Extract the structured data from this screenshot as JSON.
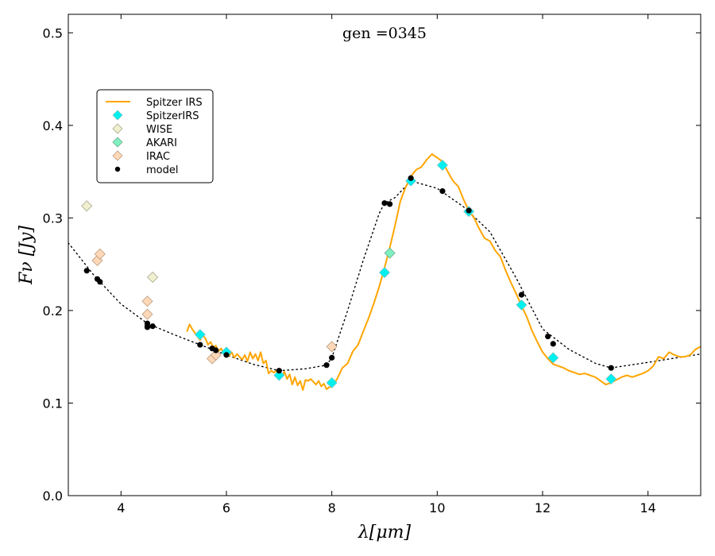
{
  "chart_data": {
    "type": "line",
    "title": "gen =0345",
    "xlabel": "λ[μm]",
    "ylabel": "Fν [Jy]",
    "xlim": [
      3,
      15
    ],
    "ylim": [
      0.0,
      0.52
    ],
    "xticks": [
      4,
      6,
      8,
      10,
      12,
      14
    ],
    "yticks": [
      0.0,
      0.1,
      0.2,
      0.3,
      0.4,
      0.5
    ],
    "legend_position": "upper-left",
    "colors": {
      "spitzer_irs_line": "#ffa500",
      "spitzer_irs_marker": "#00f0f0",
      "wise_marker": "#f0f0d0",
      "akari_marker": "#80f0c0",
      "irac_marker": "#ffd8b8",
      "model": "#000000"
    },
    "series": [
      {
        "name": "Spitzer IRS",
        "kind": "line",
        "x": [
          5.25,
          5.3,
          5.35,
          5.4,
          5.45,
          5.5,
          5.55,
          5.6,
          5.65,
          5.7,
          5.75,
          5.8,
          5.85,
          5.9,
          5.95,
          6.0,
          6.05,
          6.1,
          6.15,
          6.2,
          6.25,
          6.3,
          6.35,
          6.4,
          6.45,
          6.5,
          6.55,
          6.6,
          6.65,
          6.7,
          6.75,
          6.8,
          6.85,
          6.9,
          6.95,
          7.0,
          7.05,
          7.1,
          7.15,
          7.2,
          7.25,
          7.3,
          7.35,
          7.4,
          7.45,
          7.5,
          7.55,
          7.6,
          7.65,
          7.7,
          7.75,
          7.8,
          7.85,
          7.9,
          7.95,
          8.0,
          8.1,
          8.2,
          8.3,
          8.4,
          8.5,
          8.6,
          8.7,
          8.8,
          8.9,
          9.0,
          9.1,
          9.2,
          9.3,
          9.4,
          9.5,
          9.6,
          9.7,
          9.8,
          9.9,
          10.0,
          10.1,
          10.2,
          10.3,
          10.4,
          10.5,
          10.6,
          10.7,
          10.8,
          10.9,
          11.0,
          11.1,
          11.2,
          11.3,
          11.4,
          11.5,
          11.6,
          11.7,
          11.8,
          11.9,
          12.0,
          12.1,
          12.2,
          12.3,
          12.4,
          12.5,
          12.6,
          12.7,
          12.8,
          12.9,
          13.0,
          13.1,
          13.2,
          13.3,
          13.4,
          13.5,
          13.6,
          13.7,
          13.8,
          13.9,
          14.0,
          14.1,
          14.2,
          14.3,
          14.4,
          14.5,
          14.6,
          14.7,
          14.8,
          14.9,
          15.0
        ],
        "y": [
          0.177,
          0.185,
          0.18,
          0.176,
          0.172,
          0.168,
          0.173,
          0.17,
          0.163,
          0.166,
          0.16,
          0.162,
          0.156,
          0.159,
          0.153,
          0.157,
          0.151,
          0.155,
          0.149,
          0.153,
          0.15,
          0.147,
          0.152,
          0.145,
          0.155,
          0.148,
          0.153,
          0.146,
          0.155,
          0.143,
          0.146,
          0.132,
          0.135,
          0.133,
          0.135,
          0.131,
          0.128,
          0.134,
          0.126,
          0.131,
          0.12,
          0.128,
          0.119,
          0.124,
          0.114,
          0.125,
          0.124,
          0.126,
          0.123,
          0.12,
          0.124,
          0.118,
          0.121,
          0.115,
          0.117,
          0.118,
          0.126,
          0.138,
          0.143,
          0.156,
          0.163,
          0.178,
          0.192,
          0.208,
          0.226,
          0.246,
          0.268,
          0.292,
          0.318,
          0.333,
          0.345,
          0.352,
          0.355,
          0.363,
          0.369,
          0.365,
          0.361,
          0.35,
          0.34,
          0.334,
          0.32,
          0.308,
          0.3,
          0.288,
          0.278,
          0.275,
          0.265,
          0.258,
          0.243,
          0.23,
          0.218,
          0.205,
          0.193,
          0.178,
          0.166,
          0.155,
          0.148,
          0.142,
          0.14,
          0.138,
          0.135,
          0.133,
          0.131,
          0.132,
          0.13,
          0.128,
          0.124,
          0.12,
          0.122,
          0.125,
          0.128,
          0.13,
          0.128,
          0.13,
          0.132,
          0.135,
          0.14,
          0.15,
          0.148,
          0.155,
          0.152,
          0.15,
          0.15,
          0.152,
          0.158,
          0.161
        ]
      },
      {
        "name": "SpitzerIRS",
        "kind": "marker",
        "marker": "diamond",
        "x": [
          5.5,
          6.0,
          7.0,
          8.0,
          9.0,
          9.5,
          10.1,
          10.6,
          11.6,
          12.2,
          13.3
        ],
        "y": [
          0.174,
          0.155,
          0.13,
          0.122,
          0.241,
          0.34,
          0.357,
          0.307,
          0.206,
          0.149,
          0.126
        ]
      },
      {
        "name": "WISE",
        "kind": "marker",
        "marker": "diamond",
        "x": [
          3.35,
          4.6
        ],
        "y": [
          0.313,
          0.236
        ]
      },
      {
        "name": "AKARI",
        "kind": "marker",
        "marker": "diamond",
        "x": [
          9.1
        ],
        "y": [
          0.262
        ]
      },
      {
        "name": "IRAC",
        "kind": "marker",
        "marker": "diamond",
        "x": [
          3.55,
          3.6,
          4.5,
          4.5,
          5.73,
          5.8,
          8.0
        ],
        "y": [
          0.254,
          0.261,
          0.21,
          0.196,
          0.148,
          0.152,
          0.161
        ]
      },
      {
        "name": "model",
        "kind": "marker",
        "marker": "circle",
        "x": [
          3.35,
          3.55,
          3.6,
          4.5,
          4.5,
          4.5,
          4.6,
          5.5,
          5.73,
          5.8,
          6.0,
          7.0,
          7.9,
          8.0,
          9.0,
          9.1,
          9.5,
          10.1,
          10.6,
          11.6,
          12.1,
          12.2,
          13.3
        ],
        "y": [
          0.243,
          0.234,
          0.231,
          0.186,
          0.182,
          0.183,
          0.183,
          0.163,
          0.159,
          0.157,
          0.152,
          0.135,
          0.141,
          0.149,
          0.316,
          0.315,
          0.343,
          0.329,
          0.308,
          0.217,
          0.172,
          0.164,
          0.138
        ]
      }
    ],
    "model_curve": {
      "name": "model curve",
      "kind": "dotted-line",
      "x": [
        3.0,
        3.5,
        4.0,
        4.5,
        5.0,
        5.5,
        6.0,
        6.5,
        7.0,
        7.5,
        7.9,
        8.0,
        8.3,
        8.6,
        8.9,
        9.0,
        9.2,
        9.5,
        10.0,
        10.5,
        11.0,
        11.5,
        12.0,
        12.5,
        13.0,
        13.3,
        14.0,
        15.0
      ],
      "y": [
        0.273,
        0.237,
        0.207,
        0.186,
        0.174,
        0.163,
        0.152,
        0.142,
        0.135,
        0.137,
        0.141,
        0.149,
        0.2,
        0.255,
        0.305,
        0.316,
        0.322,
        0.34,
        0.332,
        0.312,
        0.285,
        0.235,
        0.18,
        0.158,
        0.143,
        0.138,
        0.144,
        0.153
      ]
    }
  }
}
